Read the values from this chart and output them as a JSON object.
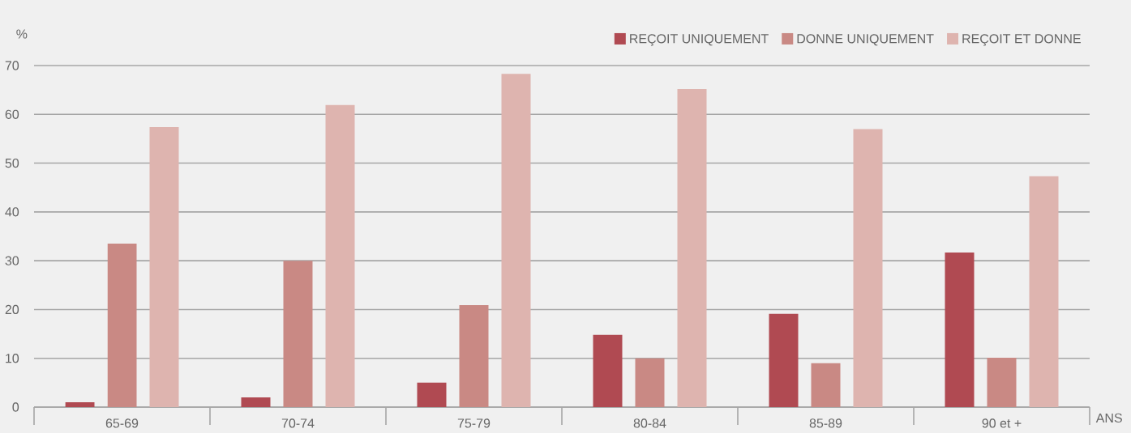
{
  "chart_data": {
    "type": "bar",
    "categories": [
      "65-69",
      "70-74",
      "75-79",
      "80-84",
      "85-89",
      "90 et +"
    ],
    "series": [
      {
        "name": "REÇOIT UNIQUEMENT",
        "color": "#b04a52",
        "values": [
          1,
          2,
          5,
          14.8,
          19.1,
          31.7
        ]
      },
      {
        "name": "DONNE UNIQUEMENT",
        "color": "#c98984",
        "values": [
          33.5,
          30,
          20.9,
          10,
          9,
          10.1
        ]
      },
      {
        "name": "REÇOIT ET DONNE",
        "color": "#deb4af",
        "values": [
          57.4,
          61.9,
          68.3,
          65.2,
          57,
          47.3
        ]
      }
    ],
    "xlabel": "ANS",
    "ylabel": "%",
    "ylim": [
      0,
      70
    ],
    "yticks": [
      0,
      10,
      20,
      30,
      40,
      50,
      60,
      70
    ],
    "grid": "y",
    "legend": "top right"
  }
}
